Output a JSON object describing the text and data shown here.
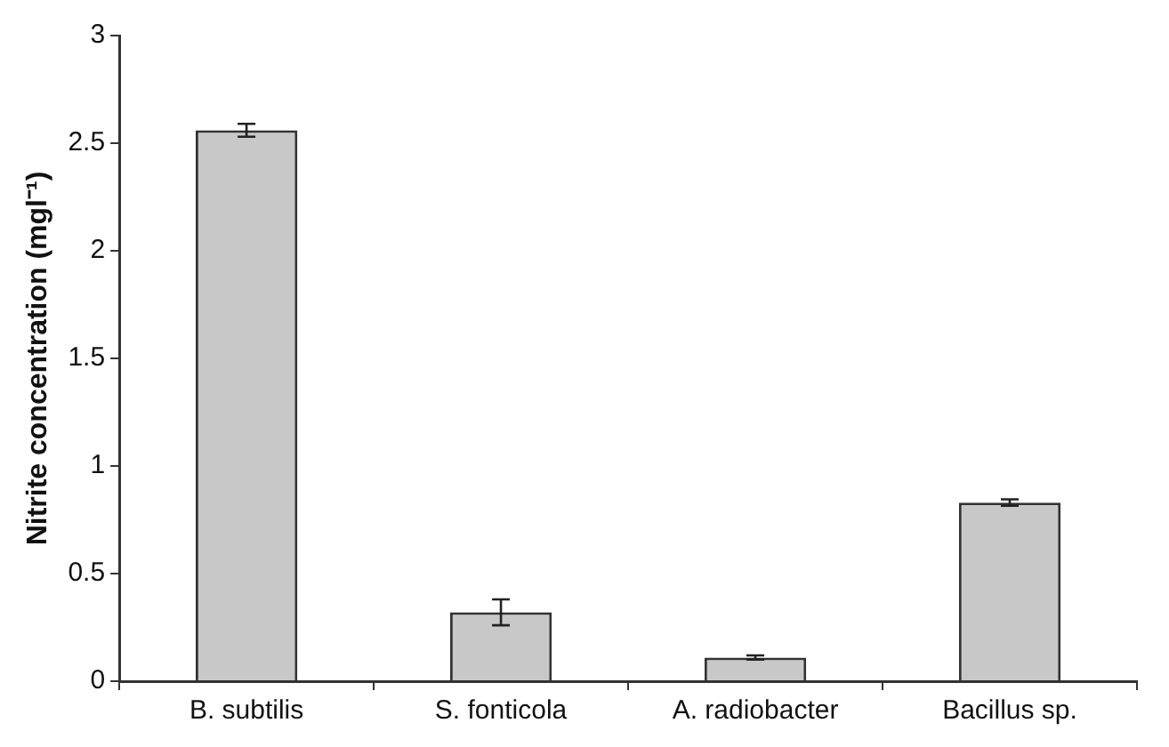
{
  "chart_data": {
    "type": "bar",
    "ylabel": "Nitrite concentration (mgl⁻¹)",
    "categories": [
      "B. subtilis",
      "S. fonticola",
      "A. radiobacter",
      "Bacillus sp."
    ],
    "values": [
      2.56,
      0.32,
      0.11,
      0.83
    ],
    "errors": [
      0.03,
      0.06,
      0.01,
      0.015
    ],
    "color": "#c8c8c8",
    "ylim": [
      0,
      3
    ],
    "yticks": [
      0,
      0.5,
      1,
      1.5,
      2,
      2.5,
      3
    ],
    "grid": false,
    "legend": false
  }
}
